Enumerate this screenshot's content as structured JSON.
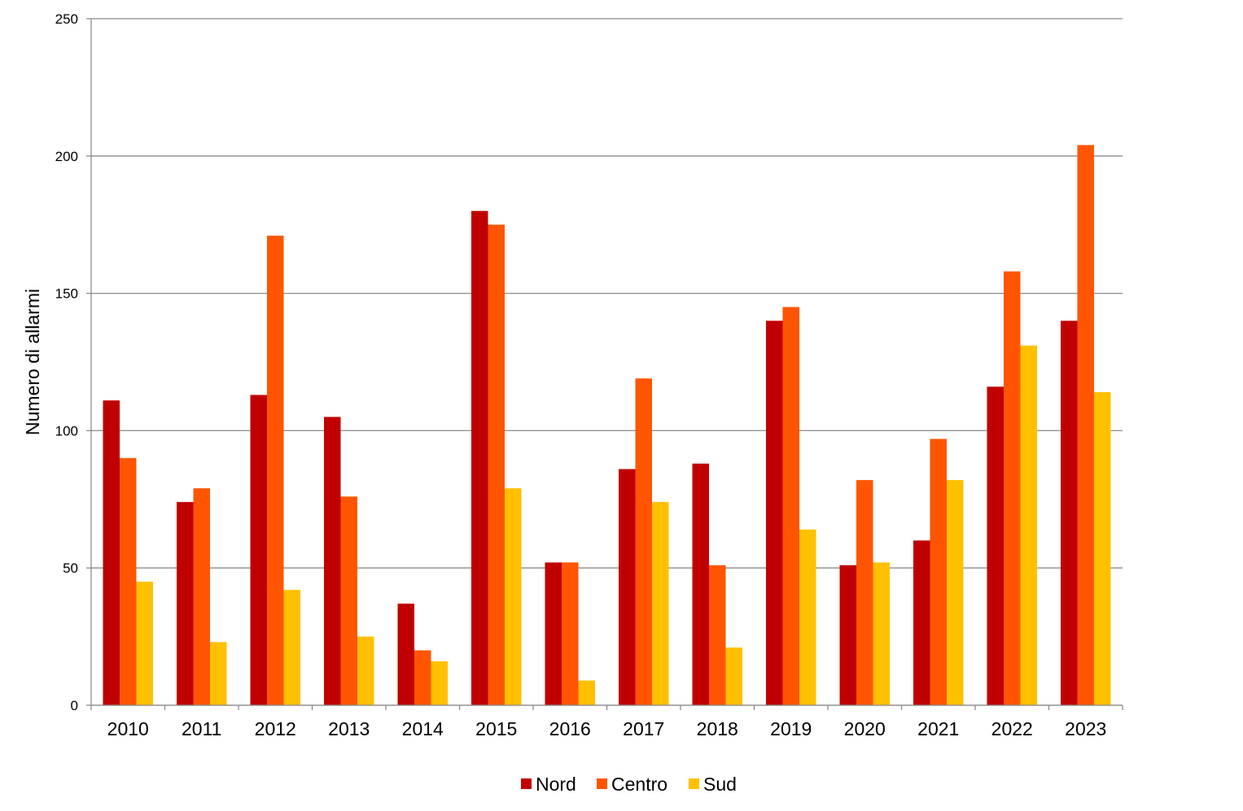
{
  "chart_data": {
    "type": "bar",
    "categories": [
      "2010",
      "2011",
      "2012",
      "2013",
      "2014",
      "2015",
      "2016",
      "2017",
      "2018",
      "2019",
      "2020",
      "2021",
      "2022",
      "2023"
    ],
    "series": [
      {
        "name": "Nord",
        "color": "#C00000",
        "values": [
          111,
          74,
          113,
          105,
          37,
          180,
          52,
          86,
          88,
          140,
          51,
          60,
          116,
          140
        ]
      },
      {
        "name": "Centro",
        "color": "#FF5500",
        "values": [
          90,
          79,
          171,
          76,
          20,
          175,
          52,
          119,
          51,
          145,
          82,
          97,
          158,
          204
        ]
      },
      {
        "name": "Sud",
        "color": "#FFC000",
        "values": [
          45,
          23,
          42,
          25,
          16,
          79,
          9,
          74,
          21,
          64,
          52,
          82,
          131,
          114
        ]
      }
    ],
    "ylabel": "Numero di allarmi",
    "ylim": [
      0,
      250
    ],
    "yticks": [
      "0",
      "50",
      "100",
      "150",
      "200",
      "250"
    ],
    "grid": true,
    "legend_position": "bottom"
  }
}
